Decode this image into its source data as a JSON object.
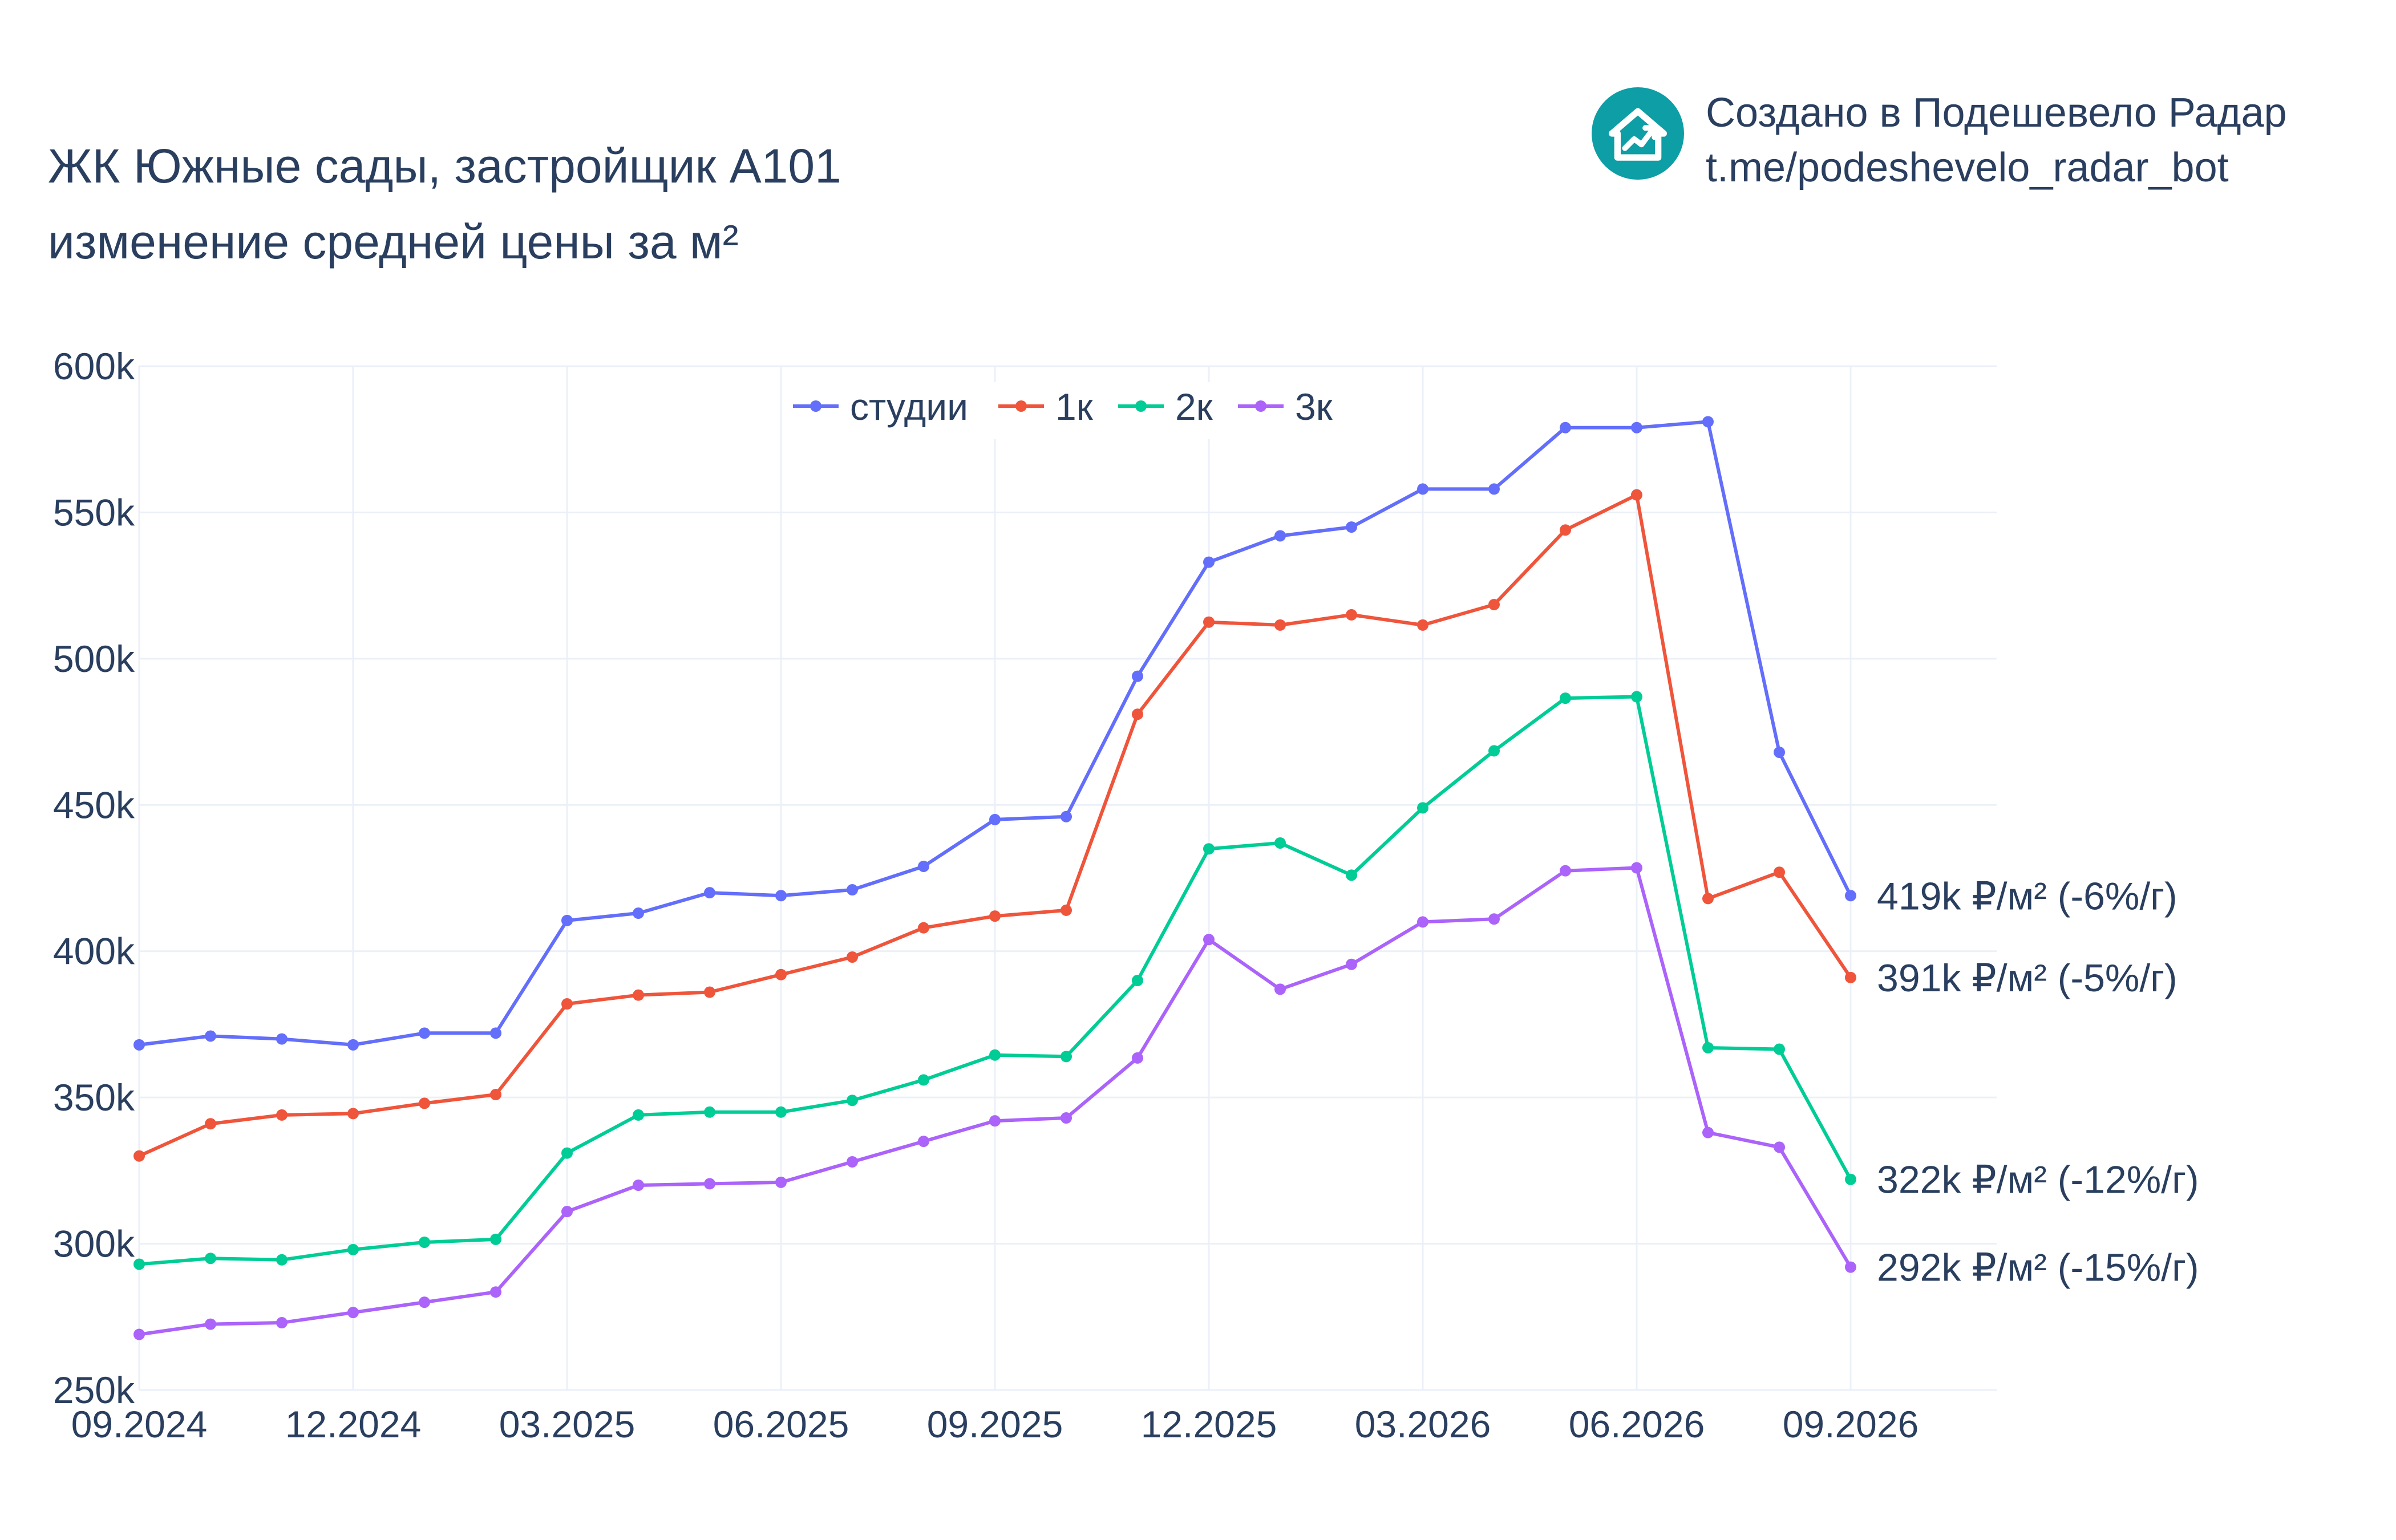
{
  "header": {
    "title_line1": "ЖК Южные сады, застройщик А101",
    "title_line2": "изменение средней цены за м²"
  },
  "brand": {
    "line1": "Создано в Подешевело Радар",
    "line2": "t.me/podeshevelo_radar_bot",
    "logo_icon": "house-chart-icon",
    "logo_color": "#0e9ea5"
  },
  "chart_data": {
    "type": "line",
    "x": [
      "09.2024",
      "10.2024",
      "11.2024",
      "12.2024",
      "01.2025",
      "02.2025",
      "03.2025",
      "04.2025",
      "05.2025",
      "06.2025",
      "07.2025",
      "08.2025",
      "09.2025",
      "10.2025",
      "11.2025",
      "12.2025",
      "01.2026",
      "02.2026",
      "03.2026",
      "04.2026",
      "05.2026",
      "06.2026",
      "07.2026",
      "08.2026",
      "09.2026"
    ],
    "x_tick_labels": [
      "09.2024",
      "12.2024",
      "03.2025",
      "06.2025",
      "09.2025",
      "12.2025",
      "03.2026",
      "06.2026",
      "09.2026"
    ],
    "y_tick_labels": [
      "250k",
      "300k",
      "350k",
      "400k",
      "450k",
      "500k",
      "550k",
      "600k"
    ],
    "ylim": [
      250000,
      600000
    ],
    "grid": true,
    "legend_position": "top-center",
    "series": [
      {
        "name": "студии",
        "color": "#636efa",
        "end_label": "419k ₽/м² (-6%/г)",
        "values": [
          368000,
          371000,
          370000,
          368000,
          372000,
          372000,
          410500,
          413000,
          420000,
          419000,
          421000,
          429000,
          445000,
          446000,
          494000,
          533000,
          542000,
          545000,
          558000,
          558000,
          579000,
          579000,
          581000,
          468000,
          419000
        ]
      },
      {
        "name": "1к",
        "color": "#ef553b",
        "end_label": "391k ₽/м² (-5%/г)",
        "values": [
          330000,
          341000,
          344000,
          344500,
          348000,
          351000,
          382000,
          385000,
          386000,
          392000,
          398000,
          408000,
          412000,
          414000,
          481000,
          512500,
          511500,
          515000,
          511500,
          518500,
          544000,
          556000,
          418000,
          427000,
          391000
        ]
      },
      {
        "name": "2к",
        "color": "#00cc96",
        "end_label": "322k ₽/м² (-12%/г)",
        "values": [
          293000,
          295000,
          294500,
          298000,
          300500,
          301500,
          331000,
          344000,
          345000,
          345000,
          349000,
          356000,
          364500,
          364000,
          390000,
          435000,
          437000,
          426000,
          449000,
          468500,
          486500,
          487000,
          367000,
          366500,
          322000
        ]
      },
      {
        "name": "3к",
        "color": "#ab63fa",
        "end_label": "292k ₽/м² (-15%/г)",
        "values": [
          269000,
          272500,
          273000,
          276500,
          280000,
          283500,
          311000,
          320000,
          320500,
          321000,
          328000,
          335000,
          342000,
          343000,
          363500,
          404000,
          387000,
          395500,
          410000,
          411000,
          427500,
          428500,
          338000,
          333000,
          292000
        ]
      }
    ]
  }
}
